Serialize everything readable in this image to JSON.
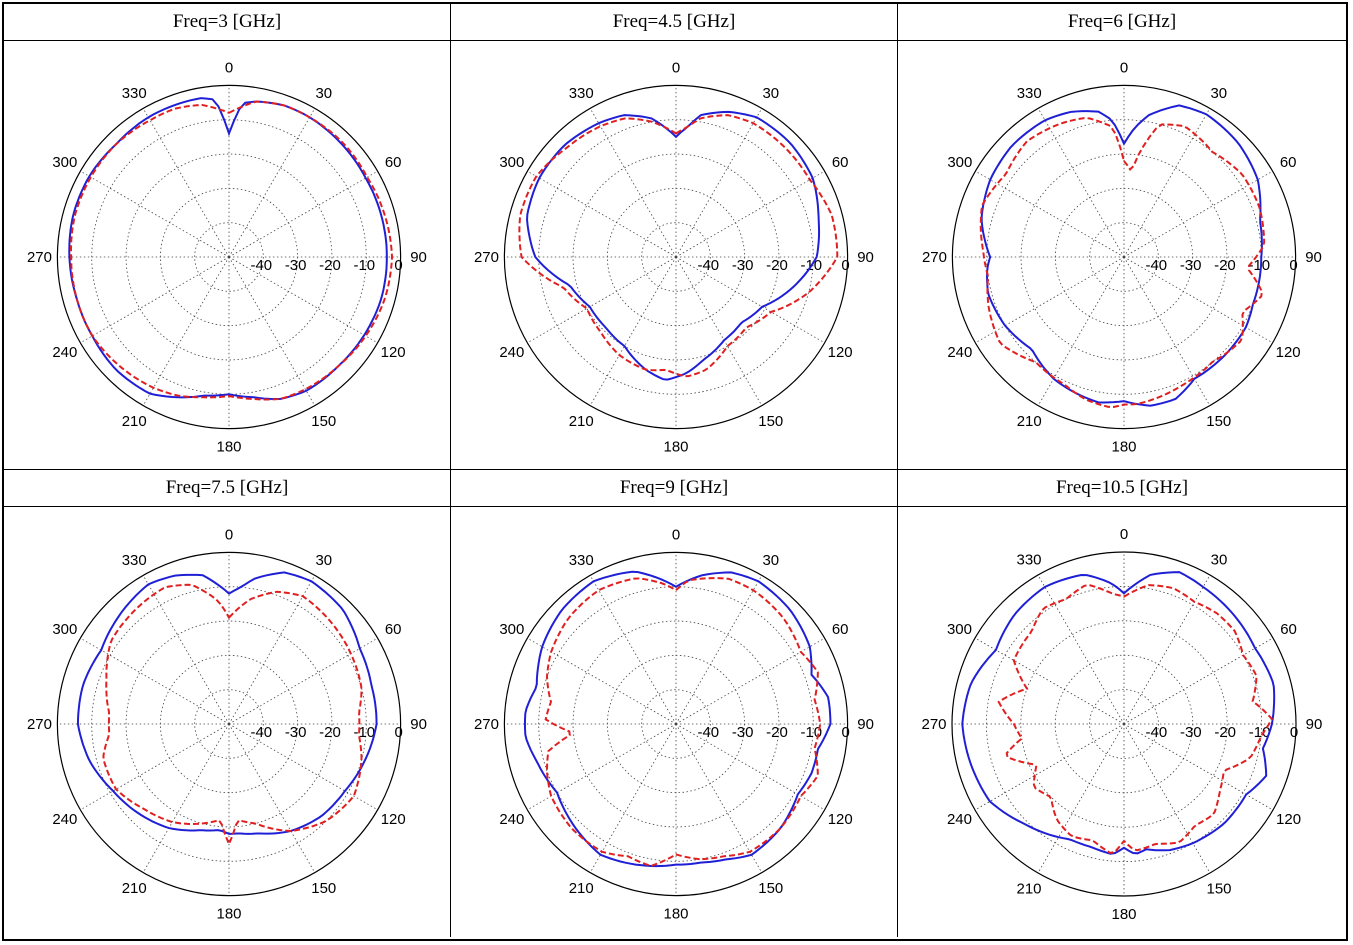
{
  "chart_data": [
    {
      "type": "polar",
      "title": "Freq=3 [GHz]",
      "angle_ticks": [
        "0",
        "30",
        "60",
        "90",
        "120",
        "150",
        "180",
        "210",
        "240",
        "270",
        "300",
        "330"
      ],
      "radial_ticks": [
        "-40",
        "-30",
        "-20",
        "-10",
        "0"
      ],
      "rlim": [
        -50,
        0
      ],
      "grid": true,
      "series": [
        {
          "color": "#1f1fd6",
          "style": "solid",
          "angles": [
            0,
            5,
            10,
            20,
            30,
            45,
            60,
            75,
            90,
            105,
            120,
            135,
            150,
            160,
            170,
            180,
            190,
            200,
            210,
            225,
            240,
            255,
            270,
            285,
            300,
            315,
            330,
            340,
            350,
            355
          ],
          "values": [
            -14,
            -5,
            -4,
            -3,
            -3,
            -3.5,
            -4,
            -4,
            -4,
            -4,
            -4.5,
            -5,
            -5,
            -6,
            -8.5,
            -10,
            -9,
            -6.5,
            -4,
            -3.5,
            -4,
            -4,
            -3.5,
            -3,
            -3,
            -3.5,
            -3,
            -3,
            -3,
            -4
          ]
        },
        {
          "color": "#e02020",
          "style": "dashed",
          "angles": [
            0,
            5,
            10,
            20,
            30,
            45,
            60,
            75,
            90,
            105,
            120,
            135,
            150,
            160,
            170,
            180,
            190,
            200,
            210,
            225,
            240,
            255,
            270,
            285,
            300,
            315,
            330,
            340,
            350,
            355
          ],
          "values": [
            -8,
            -6,
            -4,
            -3,
            -3,
            -3,
            -3.5,
            -3,
            -2.5,
            -3,
            -4,
            -5,
            -5.5,
            -6,
            -8,
            -9.5,
            -8.5,
            -7,
            -6,
            -5,
            -4,
            -4,
            -4,
            -3.5,
            -3.5,
            -3.5,
            -4,
            -4,
            -5,
            -6.5
          ]
        }
      ]
    },
    {
      "type": "polar",
      "title": "Freq=4.5 [GHz]",
      "angle_ticks": [
        "0",
        "30",
        "60",
        "90",
        "120",
        "150",
        "180",
        "210",
        "240",
        "270",
        "300",
        "330"
      ],
      "radial_ticks": [
        "-40",
        "-30",
        "-20",
        "-10",
        "0"
      ],
      "rlim": [
        -50,
        0
      ],
      "grid": true,
      "series": [
        {
          "color": "#1f1fd6",
          "style": "solid",
          "angles": [
            0,
            5,
            10,
            20,
            30,
            45,
            60,
            75,
            90,
            105,
            120,
            135,
            150,
            165,
            175,
            185,
            195,
            210,
            225,
            240,
            255,
            270,
            285,
            300,
            315,
            330,
            340,
            350,
            355
          ],
          "values": [
            -15,
            -12,
            -8,
            -5,
            -3,
            -3,
            -4,
            -7,
            -9,
            -15,
            -21,
            -23,
            -22,
            -19,
            -16,
            -14,
            -16,
            -20,
            -21,
            -21,
            -18,
            -9,
            -5,
            -4,
            -4,
            -5,
            -6,
            -9,
            -12
          ]
        },
        {
          "color": "#e02020",
          "style": "dashed",
          "angles": [
            0,
            5,
            10,
            20,
            30,
            45,
            60,
            75,
            90,
            105,
            120,
            135,
            150,
            165,
            175,
            185,
            195,
            210,
            225,
            240,
            255,
            270,
            285,
            300,
            315,
            330,
            340,
            350,
            355
          ],
          "values": [
            -14,
            -12,
            -9,
            -6,
            -5,
            -5,
            -5,
            -3,
            -3,
            -10,
            -18,
            -21,
            -20,
            -16,
            -15,
            -17,
            -16,
            -17,
            -19,
            -20,
            -16,
            -5,
            -3,
            -3,
            -5,
            -6,
            -7,
            -10,
            -12
          ]
        }
      ]
    },
    {
      "type": "polar",
      "title": "Freq=6 [GHz]",
      "angle_ticks": [
        "0",
        "30",
        "60",
        "90",
        "120",
        "150",
        "180",
        "210",
        "240",
        "270",
        "300",
        "330"
      ],
      "radial_ticks": [
        "-40",
        "-30",
        "-20",
        "-10",
        "0"
      ],
      "rlim": [
        -50,
        0
      ],
      "grid": true,
      "series": [
        {
          "color": "#1f1fd6",
          "style": "solid",
          "angles": [
            0,
            5,
            10,
            20,
            30,
            45,
            60,
            75,
            90,
            100,
            110,
            120,
            135,
            150,
            160,
            170,
            180,
            190,
            200,
            210,
            225,
            240,
            255,
            265,
            270,
            285,
            300,
            315,
            330,
            340,
            350,
            355
          ],
          "values": [
            -17,
            -12,
            -8,
            -3,
            -2,
            -3,
            -5,
            -9,
            -10,
            -10,
            -10,
            -9,
            -9,
            -9,
            -6,
            -6,
            -8,
            -7,
            -8,
            -9,
            -12,
            -10,
            -9,
            -10,
            -11,
            -7,
            -5,
            -4,
            -4,
            -5,
            -7,
            -10
          ]
        },
        {
          "color": "#e02020",
          "style": "dashed",
          "angles": [
            0,
            5,
            8,
            15,
            25,
            40,
            55,
            70,
            85,
            95,
            105,
            115,
            125,
            140,
            155,
            165,
            175,
            180,
            185,
            195,
            205,
            220,
            235,
            250,
            262,
            272,
            290,
            305,
            320,
            335,
            345,
            355
          ],
          "values": [
            -22,
            -25,
            -20,
            -10,
            -8,
            -10,
            -8,
            -8,
            -9,
            -14,
            -8,
            -12,
            -8,
            -10,
            -9,
            -8,
            -7,
            -7,
            -6,
            -7,
            -9,
            -10,
            -6,
            -8,
            -10,
            -9,
            -6,
            -8,
            -6,
            -7,
            -8,
            -12
          ]
        }
      ]
    },
    {
      "type": "polar",
      "title": "Freq=7.5 [GHz]",
      "angle_ticks": [
        "0",
        "30",
        "60",
        "90",
        "120",
        "150",
        "180",
        "210",
        "240",
        "270",
        "300",
        "330"
      ],
      "radial_ticks": [
        "-40",
        "-30",
        "-20",
        "-10",
        "0"
      ],
      "rlim": [
        -50,
        0
      ],
      "grid": true,
      "series": [
        {
          "color": "#1f1fd6",
          "style": "solid",
          "angles": [
            0,
            5,
            10,
            20,
            30,
            45,
            60,
            75,
            90,
            105,
            120,
            135,
            150,
            165,
            175,
            180,
            185,
            195,
            210,
            225,
            240,
            255,
            270,
            285,
            300,
            315,
            330,
            340,
            350,
            355
          ],
          "values": [
            -12,
            -10,
            -7,
            -3,
            -2,
            -3,
            -6,
            -7,
            -7,
            -9,
            -11,
            -12,
            -14,
            -17,
            -18,
            -18,
            -19,
            -18,
            -15,
            -13,
            -11,
            -8,
            -6,
            -6,
            -7,
            -5,
            -3,
            -4,
            -6,
            -9
          ]
        },
        {
          "color": "#e02020",
          "style": "dashed",
          "angles": [
            0,
            5,
            10,
            20,
            30,
            45,
            60,
            75,
            85,
            95,
            105,
            120,
            135,
            150,
            165,
            175,
            180,
            185,
            195,
            210,
            225,
            240,
            255,
            265,
            275,
            290,
            305,
            320,
            335,
            345,
            355
          ],
          "values": [
            -19,
            -16,
            -13,
            -9,
            -7,
            -8,
            -9,
            -10,
            -12,
            -12,
            -10,
            -8,
            -10,
            -14,
            -20,
            -22,
            -15,
            -22,
            -20,
            -17,
            -15,
            -12,
            -12,
            -15,
            -15,
            -12,
            -8,
            -7,
            -6,
            -8,
            -14
          ]
        }
      ]
    },
    {
      "type": "polar",
      "title": "Freq=9 [GHz]",
      "angle_ticks": [
        "0",
        "30",
        "60",
        "90",
        "120",
        "150",
        "180",
        "210",
        "240",
        "270",
        "300",
        "330"
      ],
      "radial_ticks": [
        "-40",
        "-30",
        "-20",
        "-10",
        "0"
      ],
      "rlim": [
        -50,
        0
      ],
      "grid": true,
      "series": [
        {
          "color": "#1f1fd6",
          "style": "solid",
          "angles": [
            0,
            5,
            10,
            20,
            30,
            45,
            60,
            70,
            80,
            90,
            100,
            110,
            120,
            135,
            150,
            160,
            170,
            180,
            190,
            200,
            210,
            225,
            240,
            255,
            265,
            275,
            285,
            300,
            315,
            330,
            345,
            355
          ],
          "values": [
            -10,
            -8,
            -6,
            -3,
            -2,
            -3,
            -5,
            -8,
            -5,
            -5,
            -8,
            -8,
            -9,
            -7,
            -6,
            -8,
            -9,
            -9,
            -8,
            -7,
            -6,
            -8,
            -10,
            -8,
            -6,
            -6,
            -8,
            -5,
            -3,
            -2,
            -4,
            -8
          ]
        },
        {
          "color": "#e02020",
          "style": "dashed",
          "angles": [
            0,
            5,
            10,
            20,
            30,
            45,
            60,
            70,
            80,
            90,
            100,
            110,
            120,
            135,
            150,
            160,
            170,
            180,
            190,
            200,
            210,
            225,
            240,
            250,
            258,
            265,
            272,
            280,
            290,
            300,
            315,
            330,
            345,
            355
          ],
          "values": [
            -11,
            -8,
            -7,
            -5,
            -5,
            -6,
            -8,
            -6,
            -9,
            -8,
            -9,
            -6,
            -8,
            -7,
            -7,
            -9,
            -10,
            -12,
            -8,
            -9,
            -7,
            -7,
            -8,
            -10,
            -12,
            -20,
            -12,
            -13,
            -10,
            -8,
            -6,
            -5,
            -6,
            -9
          ]
        }
      ]
    },
    {
      "type": "polar",
      "title": "Freq=10.5 [GHz]",
      "angle_ticks": [
        "0",
        "30",
        "60",
        "90",
        "120",
        "150",
        "180",
        "210",
        "240",
        "270",
        "300",
        "330"
      ],
      "radial_ticks": [
        "-40",
        "-30",
        "-20",
        "-10",
        "0"
      ],
      "rlim": [
        -50,
        0
      ],
      "grid": true,
      "series": [
        {
          "color": "#1f1fd6",
          "style": "solid",
          "angles": [
            0,
            5,
            10,
            20,
            30,
            45,
            60,
            75,
            90,
            100,
            110,
            120,
            135,
            150,
            160,
            170,
            175,
            180,
            185,
            195,
            205,
            215,
            225,
            240,
            255,
            270,
            285,
            300,
            315,
            330,
            345,
            355
          ],
          "values": [
            -12,
            -9,
            -6,
            -3,
            -4,
            -5,
            -6,
            -5,
            -7,
            -9,
            -6,
            -9,
            -9,
            -10,
            -11,
            -13,
            -12,
            -14,
            -12,
            -13,
            -13,
            -11,
            -9,
            -5,
            -4,
            -3,
            -4,
            -7,
            -5,
            -4,
            -5,
            -9
          ]
        },
        {
          "color": "#e02020",
          "style": "dashed",
          "angles": [
            0,
            5,
            10,
            20,
            30,
            40,
            50,
            60,
            70,
            80,
            88,
            95,
            105,
            115,
            125,
            135,
            145,
            155,
            165,
            175,
            180,
            185,
            195,
            205,
            215,
            225,
            235,
            245,
            255,
            262,
            270,
            280,
            290,
            300,
            315,
            325,
            335,
            345,
            355
          ],
          "values": [
            -13,
            -11,
            -9,
            -8,
            -9,
            -8,
            -8,
            -10,
            -9,
            -12,
            -7,
            -10,
            -12,
            -18,
            -16,
            -13,
            -14,
            -12,
            -14,
            -13,
            -16,
            -12,
            -15,
            -14,
            -16,
            -20,
            -18,
            -22,
            -14,
            -20,
            -18,
            -13,
            -20,
            -13,
            -12,
            -9,
            -10,
            -8,
            -12
          ]
        }
      ]
    }
  ]
}
